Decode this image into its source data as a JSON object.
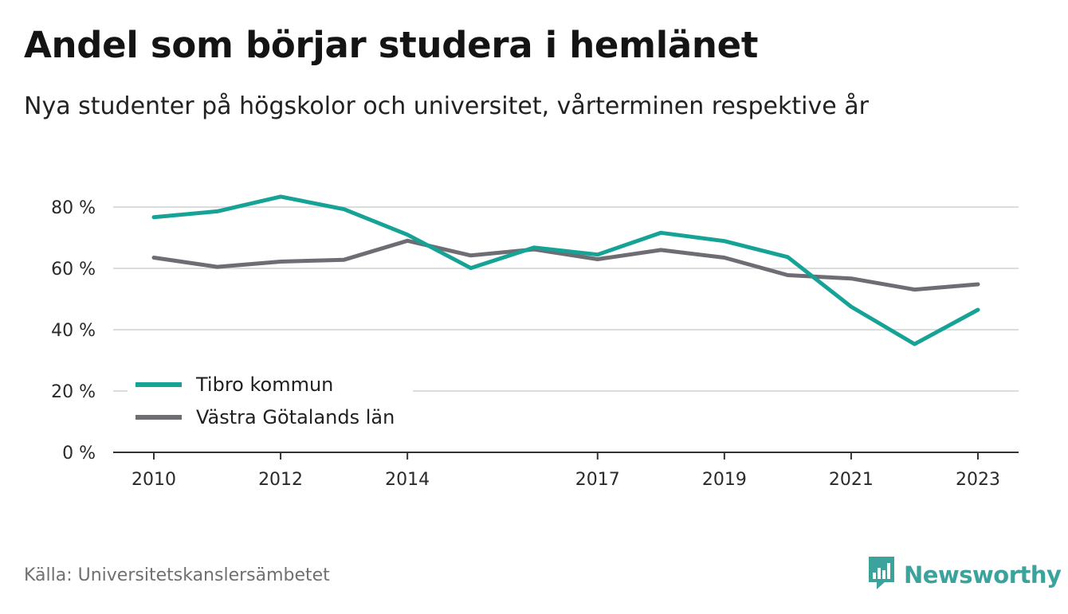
{
  "header": {
    "title": "Andel som börjar studera i hemlänet",
    "subtitle": "Nya studenter på högskolor och universitet, vårterminen respektive år"
  },
  "footer": {
    "source": "Källa: Universitetskanslersämbetet",
    "brand": "Newsworthy",
    "brand_icon": "bar-chart-speech-bubble-icon",
    "brand_color": "#3ba39c"
  },
  "chart_data": {
    "type": "line",
    "title": "Andel som börjar studera i hemlänet",
    "subtitle": "Nya studenter på högskolor och universitet, vårterminen respektive år",
    "x": [
      2010,
      2011,
      2012,
      2013,
      2014,
      2015,
      2016,
      2017,
      2018,
      2019,
      2020,
      2021,
      2022,
      2023
    ],
    "x_tick_labels": [
      "2010",
      "2012",
      "2014",
      "2017",
      "2019",
      "2021",
      "2023"
    ],
    "ylim": [
      0,
      80
    ],
    "y_ticks": [
      0,
      20,
      40,
      60,
      80
    ],
    "y_tick_labels": [
      "0 %",
      "20 %",
      "40 %",
      "60 %",
      "80 %"
    ],
    "grid": true,
    "legend_position": "bottom-left",
    "series": [
      {
        "name": "Tibro kommun",
        "color": "#16a396",
        "values": [
          76.7,
          78.6,
          83.4,
          79.3,
          71.0,
          60.1,
          66.8,
          64.5,
          71.6,
          68.9,
          63.7,
          47.5,
          35.3,
          46.5
        ]
      },
      {
        "name": "Västra Götalands län",
        "color": "#6e6d74",
        "values": [
          63.5,
          60.5,
          62.2,
          62.8,
          69.0,
          64.2,
          66.2,
          63.0,
          66.0,
          63.5,
          57.8,
          56.7,
          53.1,
          54.8
        ]
      }
    ]
  }
}
